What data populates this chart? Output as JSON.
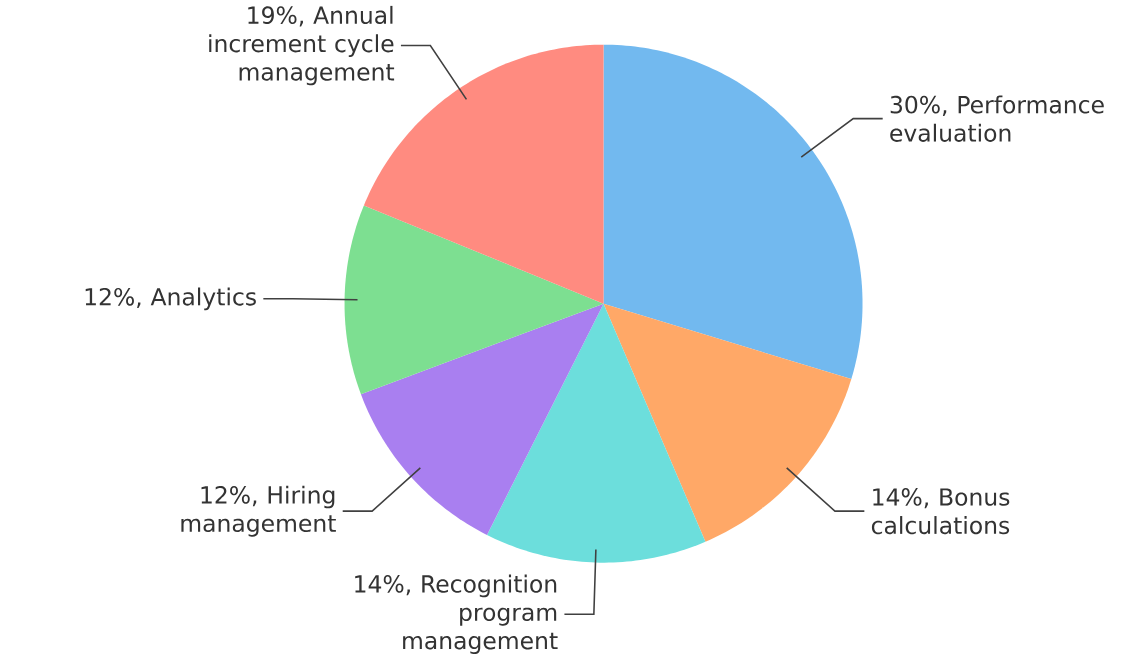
{
  "chart_data": {
    "type": "pie",
    "categories": [
      "30%, Performance evaluation",
      "14%, Bonus calculations",
      "14%, Recognition program management",
      "12%, Hiring management",
      "12%, Analytics",
      "19%, Annual increment cycle management"
    ],
    "values": [
      30,
      14,
      14,
      12,
      12,
      19
    ],
    "colors": [
      "#72b9ef",
      "#ffa867",
      "#6cdedc",
      "#a97ff0",
      "#7ddf91",
      "#ff8b80"
    ]
  }
}
